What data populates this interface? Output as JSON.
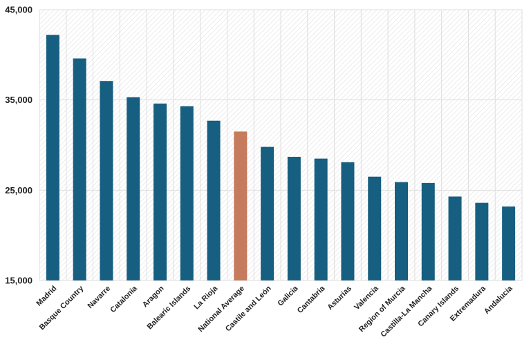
{
  "chart_data": {
    "type": "bar",
    "title": "",
    "xlabel": "",
    "ylabel": "",
    "categories": [
      "Madrid",
      "Basque Country",
      "Navarre",
      "Catalonia",
      "Aragon",
      "Balearic Islands",
      "La Rioja",
      "National Average",
      "Castile and León",
      "Galicia",
      "Cantabria",
      "Asturias",
      "Valencia",
      "Region of Murcia",
      "Castilla-La Mancha",
      "Canary Islands",
      "Extremadura",
      "Andalucia"
    ],
    "values": [
      42200,
      39600,
      37100,
      35300,
      34600,
      34300,
      32700,
      31500,
      29800,
      28700,
      28500,
      28100,
      26500,
      25900,
      25800,
      24300,
      23600,
      23200
    ],
    "highlight_index": 7,
    "ylim": [
      15000,
      45000
    ],
    "yticks": [
      15000,
      25000,
      35000,
      45000
    ],
    "ytick_labels": [
      "15,000",
      "25,000",
      "35,000",
      "45,000"
    ],
    "grid": true,
    "colors": {
      "bar": "#175F80",
      "highlight": "#C67B5C",
      "grid": "#dedede",
      "hatch": "#e6e6e6"
    }
  }
}
